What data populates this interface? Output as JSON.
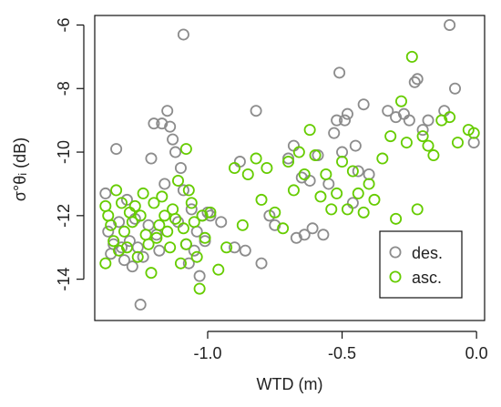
{
  "chart_data": {
    "type": "scatter",
    "xlabel": "WTD (m)",
    "ylabel": "σ°θᵢ (dB)",
    "xlim": [
      -1.42,
      0.03
    ],
    "ylim": [
      -15.3,
      -5.7
    ],
    "xticks": [
      -1.0,
      -0.5,
      0.0
    ],
    "xtick_labels": [
      "-1.0",
      "-0.5",
      "0.0"
    ],
    "yticks": [
      -14,
      -12,
      -10,
      -8,
      -6
    ],
    "ytick_labels": [
      "-14",
      "-12",
      "-10",
      "-8",
      "-6"
    ],
    "grid": false,
    "legend_position": "bottom-right",
    "series": [
      {
        "name": "des.",
        "color": "#8c8c8c",
        "marker": "open-circle",
        "points": [
          [
            -1.38,
            -11.3
          ],
          [
            -1.37,
            -12.5
          ],
          [
            -1.36,
            -13.2
          ],
          [
            -1.35,
            -12.9
          ],
          [
            -1.34,
            -9.9
          ],
          [
            -1.33,
            -12.2
          ],
          [
            -1.32,
            -13.0
          ],
          [
            -1.31,
            -13.4
          ],
          [
            -1.3,
            -11.5
          ],
          [
            -1.29,
            -12.8
          ],
          [
            -1.28,
            -13.6
          ],
          [
            -1.27,
            -12.1
          ],
          [
            -1.26,
            -13.0
          ],
          [
            -1.25,
            -14.8
          ],
          [
            -1.24,
            -13.3
          ],
          [
            -1.22,
            -12.3
          ],
          [
            -1.21,
            -10.2
          ],
          [
            -1.2,
            -9.1
          ],
          [
            -1.19,
            -12.6
          ],
          [
            -1.18,
            -13.1
          ],
          [
            -1.17,
            -9.1
          ],
          [
            -1.16,
            -11.0
          ],
          [
            -1.15,
            -8.7
          ],
          [
            -1.14,
            -9.2
          ],
          [
            -1.13,
            -9.6
          ],
          [
            -1.12,
            -10.0
          ],
          [
            -1.11,
            -12.2
          ],
          [
            -1.1,
            -10.5
          ],
          [
            -1.09,
            -6.3
          ],
          [
            -1.09,
            -11.2
          ],
          [
            -1.08,
            -12.9
          ],
          [
            -1.07,
            -13.5
          ],
          [
            -1.06,
            -11.8
          ],
          [
            -1.05,
            -13.1
          ],
          [
            -1.04,
            -12.5
          ],
          [
            -1.03,
            -13.9
          ],
          [
            -1.02,
            -12.0
          ],
          [
            -1.01,
            -12.8
          ],
          [
            -1.0,
            -11.9
          ],
          [
            -0.99,
            -12.0
          ],
          [
            -0.95,
            -12.2
          ],
          [
            -0.9,
            -13.0
          ],
          [
            -0.88,
            -10.3
          ],
          [
            -0.86,
            -13.1
          ],
          [
            -0.82,
            -8.7
          ],
          [
            -0.8,
            -13.5
          ],
          [
            -0.77,
            -12.0
          ],
          [
            -0.75,
            -12.3
          ],
          [
            -0.7,
            -10.2
          ],
          [
            -0.68,
            -9.8
          ],
          [
            -0.67,
            -12.7
          ],
          [
            -0.65,
            -10.8
          ],
          [
            -0.64,
            -12.6
          ],
          [
            -0.62,
            -10.9
          ],
          [
            -0.61,
            -12.4
          ],
          [
            -0.59,
            -10.1
          ],
          [
            -0.57,
            -12.6
          ],
          [
            -0.55,
            -11.0
          ],
          [
            -0.53,
            -9.4
          ],
          [
            -0.52,
            -9.0
          ],
          [
            -0.51,
            -7.5
          ],
          [
            -0.5,
            -10.0
          ],
          [
            -0.49,
            -9.0
          ],
          [
            -0.48,
            -8.8
          ],
          [
            -0.46,
            -11.6
          ],
          [
            -0.45,
            -9.8
          ],
          [
            -0.44,
            -10.6
          ],
          [
            -0.42,
            -8.5
          ],
          [
            -0.4,
            -10.7
          ],
          [
            -0.33,
            -8.7
          ],
          [
            -0.3,
            -8.9
          ],
          [
            -0.27,
            -8.8
          ],
          [
            -0.25,
            -9.0
          ],
          [
            -0.23,
            -7.8
          ],
          [
            -0.22,
            -7.7
          ],
          [
            -0.2,
            -9.3
          ],
          [
            -0.18,
            -9.0
          ],
          [
            -0.12,
            -8.7
          ],
          [
            -0.1,
            -6.0
          ],
          [
            -0.08,
            -8.0
          ],
          [
            -0.01,
            -9.7
          ]
        ]
      },
      {
        "name": "asc.",
        "color": "#66cc00",
        "marker": "open-circle",
        "points": [
          [
            -1.38,
            -11.7
          ],
          [
            -1.38,
            -13.5
          ],
          [
            -1.37,
            -12.0
          ],
          [
            -1.36,
            -12.3
          ],
          [
            -1.35,
            -12.8
          ],
          [
            -1.34,
            -11.2
          ],
          [
            -1.33,
            -13.1
          ],
          [
            -1.32,
            -11.6
          ],
          [
            -1.31,
            -12.5
          ],
          [
            -1.3,
            -13.0
          ],
          [
            -1.29,
            -11.9
          ],
          [
            -1.28,
            -12.2
          ],
          [
            -1.27,
            -11.7
          ],
          [
            -1.26,
            -13.3
          ],
          [
            -1.25,
            -12.0
          ],
          [
            -1.24,
            -11.3
          ],
          [
            -1.23,
            -12.6
          ],
          [
            -1.22,
            -12.9
          ],
          [
            -1.21,
            -13.8
          ],
          [
            -1.2,
            -11.6
          ],
          [
            -1.19,
            -12.7
          ],
          [
            -1.18,
            -12.3
          ],
          [
            -1.17,
            -11.4
          ],
          [
            -1.16,
            -12.0
          ],
          [
            -1.15,
            -12.5
          ],
          [
            -1.14,
            -13.0
          ],
          [
            -1.13,
            -11.8
          ],
          [
            -1.12,
            -12.1
          ],
          [
            -1.11,
            -10.9
          ],
          [
            -1.1,
            -13.5
          ],
          [
            -1.09,
            -12.4
          ],
          [
            -1.08,
            -9.9
          ],
          [
            -1.08,
            -12.9
          ],
          [
            -1.07,
            -11.2
          ],
          [
            -1.06,
            -11.6
          ],
          [
            -1.05,
            -12.2
          ],
          [
            -1.04,
            -13.3
          ],
          [
            -1.03,
            -14.3
          ],
          [
            -1.02,
            -12.0
          ],
          [
            -1.01,
            -12.7
          ],
          [
            -0.99,
            -11.9
          ],
          [
            -0.96,
            -13.7
          ],
          [
            -0.93,
            -13.0
          ],
          [
            -0.9,
            -10.5
          ],
          [
            -0.87,
            -12.3
          ],
          [
            -0.85,
            -10.7
          ],
          [
            -0.82,
            -10.2
          ],
          [
            -0.8,
            -11.5
          ],
          [
            -0.78,
            -10.5
          ],
          [
            -0.75,
            -11.9
          ],
          [
            -0.72,
            -12.4
          ],
          [
            -0.7,
            -10.3
          ],
          [
            -0.68,
            -11.2
          ],
          [
            -0.66,
            -10.0
          ],
          [
            -0.64,
            -10.7
          ],
          [
            -0.62,
            -9.3
          ],
          [
            -0.6,
            -10.1
          ],
          [
            -0.58,
            -11.4
          ],
          [
            -0.56,
            -10.7
          ],
          [
            -0.54,
            -11.8
          ],
          [
            -0.52,
            -11.3
          ],
          [
            -0.5,
            -10.3
          ],
          [
            -0.48,
            -11.8
          ],
          [
            -0.46,
            -10.6
          ],
          [
            -0.44,
            -11.3
          ],
          [
            -0.42,
            -11.9
          ],
          [
            -0.4,
            -11.0
          ],
          [
            -0.38,
            -11.5
          ],
          [
            -0.35,
            -10.2
          ],
          [
            -0.32,
            -9.5
          ],
          [
            -0.3,
            -12.1
          ],
          [
            -0.28,
            -8.4
          ],
          [
            -0.26,
            -9.7
          ],
          [
            -0.24,
            -7.0
          ],
          [
            -0.22,
            -11.8
          ],
          [
            -0.2,
            -9.5
          ],
          [
            -0.18,
            -9.8
          ],
          [
            -0.16,
            -10.1
          ],
          [
            -0.13,
            -9.0
          ],
          [
            -0.1,
            -8.9
          ],
          [
            -0.07,
            -9.7
          ],
          [
            -0.03,
            -9.3
          ],
          [
            -0.01,
            -9.4
          ]
        ]
      }
    ]
  }
}
